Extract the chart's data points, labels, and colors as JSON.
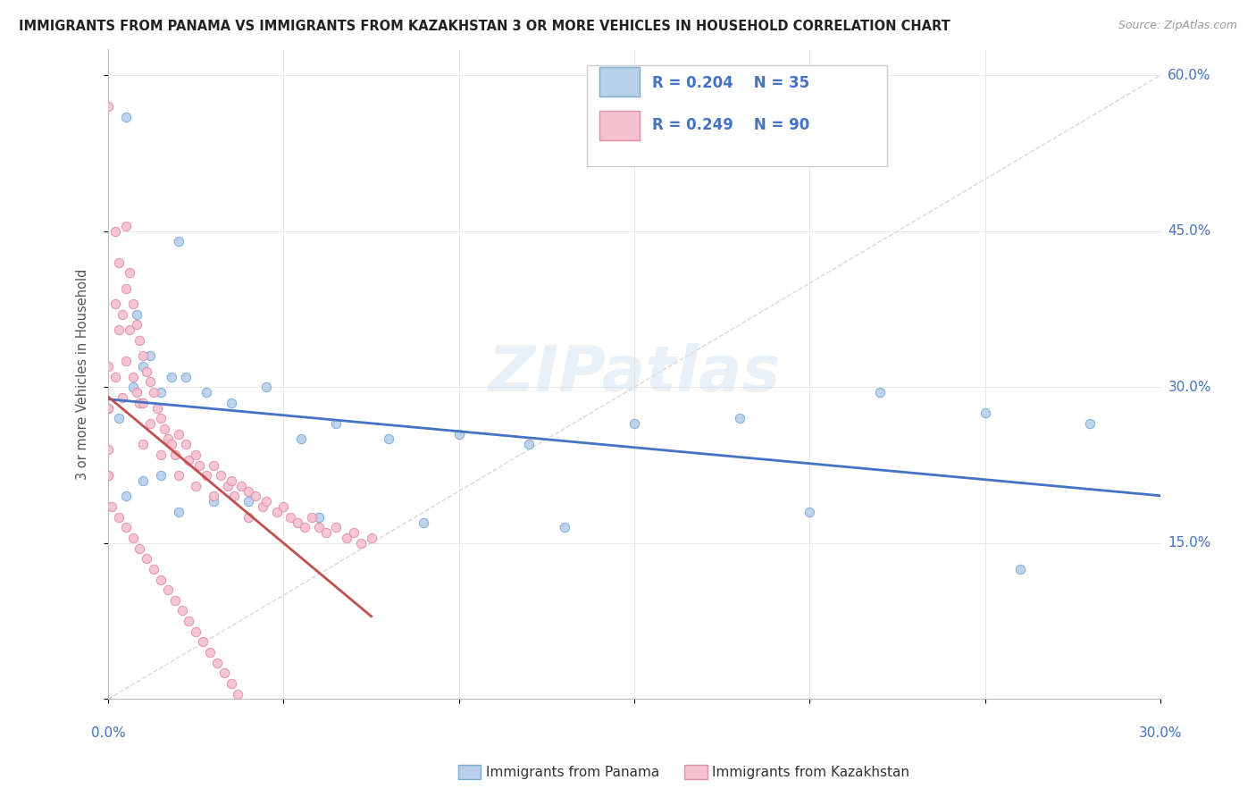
{
  "title": "IMMIGRANTS FROM PANAMA VS IMMIGRANTS FROM KAZAKHSTAN 3 OR MORE VEHICLES IN HOUSEHOLD CORRELATION CHART",
  "source": "Source: ZipAtlas.com",
  "xlim": [
    0.0,
    0.3
  ],
  "ylim": [
    0.0,
    0.625
  ],
  "ylabel_ticks": [
    0.0,
    0.15,
    0.3,
    0.45,
    0.6
  ],
  "ylabel_tick_labels": [
    "",
    "15.0%",
    "30.0%",
    "45.0%",
    "60.0%"
  ],
  "legend_panama": "R = 0.204   N = 35",
  "legend_kazakhstan": "R = 0.249   N = 90",
  "legend_label_panama": "Immigrants from Panama",
  "legend_label_kazakhstan": "Immigrants from Kazakhstan",
  "ylabel": "3 or more Vehicles in Household",
  "color_panama_fill": "#b8d0ea",
  "color_panama_edge": "#7aadd4",
  "color_kazakhstan_fill": "#f5c0d0",
  "color_kazakhstan_edge": "#e090a8",
  "color_trendline_panama": "#4472c4",
  "color_trendline_kazakhstan": "#c0504d",
  "color_diag": "#d0d0d0",
  "color_grid": "#e8e8e8",
  "background_color": "#ffffff",
  "watermark": "ZIPatlas",
  "panama_x": [
    0.005,
    0.02,
    0.008,
    0.012,
    0.018,
    0.0,
    0.003,
    0.007,
    0.01,
    0.015,
    0.022,
    0.028,
    0.035,
    0.045,
    0.055,
    0.065,
    0.08,
    0.1,
    0.12,
    0.15,
    0.18,
    0.22,
    0.25,
    0.28,
    0.005,
    0.01,
    0.015,
    0.02,
    0.03,
    0.04,
    0.06,
    0.09,
    0.13,
    0.2,
    0.26
  ],
  "panama_y": [
    0.56,
    0.44,
    0.37,
    0.33,
    0.31,
    0.28,
    0.27,
    0.3,
    0.32,
    0.295,
    0.31,
    0.295,
    0.285,
    0.3,
    0.25,
    0.265,
    0.25,
    0.255,
    0.245,
    0.265,
    0.27,
    0.295,
    0.275,
    0.265,
    0.195,
    0.21,
    0.215,
    0.18,
    0.19,
    0.19,
    0.175,
    0.17,
    0.165,
    0.18,
    0.125
  ],
  "kazakhstan_x": [
    0.0,
    0.0,
    0.0,
    0.0,
    0.0,
    0.002,
    0.002,
    0.002,
    0.003,
    0.003,
    0.004,
    0.004,
    0.005,
    0.005,
    0.005,
    0.006,
    0.006,
    0.007,
    0.007,
    0.008,
    0.008,
    0.009,
    0.009,
    0.01,
    0.01,
    0.01,
    0.011,
    0.012,
    0.012,
    0.013,
    0.014,
    0.015,
    0.015,
    0.016,
    0.017,
    0.018,
    0.019,
    0.02,
    0.02,
    0.022,
    0.023,
    0.025,
    0.025,
    0.026,
    0.028,
    0.03,
    0.03,
    0.032,
    0.034,
    0.035,
    0.036,
    0.038,
    0.04,
    0.04,
    0.042,
    0.044,
    0.045,
    0.048,
    0.05,
    0.052,
    0.054,
    0.056,
    0.058,
    0.06,
    0.062,
    0.065,
    0.068,
    0.07,
    0.072,
    0.075,
    0.0,
    0.001,
    0.003,
    0.005,
    0.007,
    0.009,
    0.011,
    0.013,
    0.015,
    0.017,
    0.019,
    0.021,
    0.023,
    0.025,
    0.027,
    0.029,
    0.031,
    0.033,
    0.035,
    0.037
  ],
  "kazakhstan_y": [
    0.57,
    0.32,
    0.28,
    0.24,
    0.215,
    0.45,
    0.38,
    0.31,
    0.42,
    0.355,
    0.37,
    0.29,
    0.455,
    0.395,
    0.325,
    0.41,
    0.355,
    0.38,
    0.31,
    0.36,
    0.295,
    0.345,
    0.285,
    0.33,
    0.285,
    0.245,
    0.315,
    0.305,
    0.265,
    0.295,
    0.28,
    0.27,
    0.235,
    0.26,
    0.25,
    0.245,
    0.235,
    0.255,
    0.215,
    0.245,
    0.23,
    0.235,
    0.205,
    0.225,
    0.215,
    0.225,
    0.195,
    0.215,
    0.205,
    0.21,
    0.195,
    0.205,
    0.2,
    0.175,
    0.195,
    0.185,
    0.19,
    0.18,
    0.185,
    0.175,
    0.17,
    0.165,
    0.175,
    0.165,
    0.16,
    0.165,
    0.155,
    0.16,
    0.15,
    0.155,
    0.215,
    0.185,
    0.175,
    0.165,
    0.155,
    0.145,
    0.135,
    0.125,
    0.115,
    0.105,
    0.095,
    0.085,
    0.075,
    0.065,
    0.055,
    0.045,
    0.035,
    0.025,
    0.015,
    0.005
  ]
}
